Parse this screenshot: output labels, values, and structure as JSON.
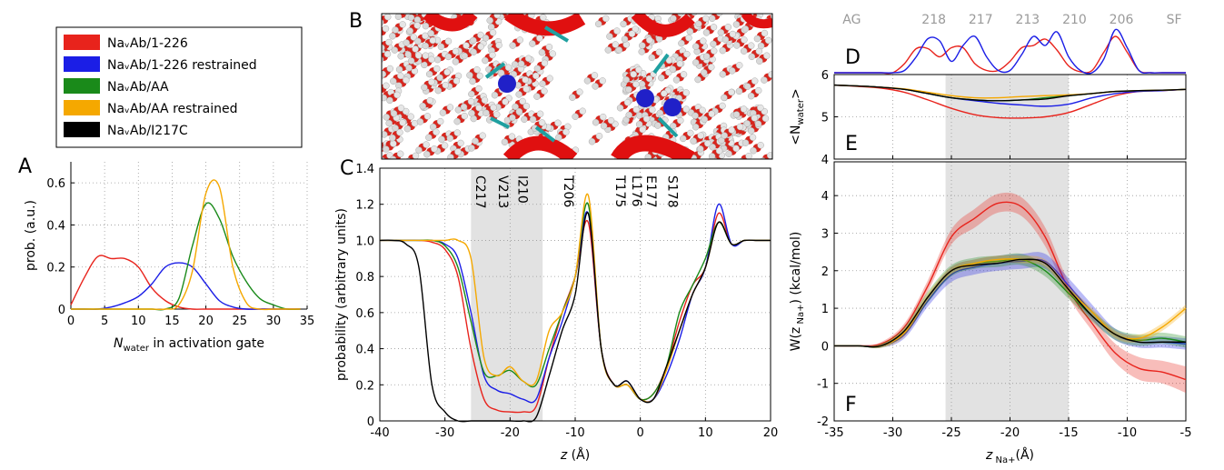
{
  "panel_labels": [
    "A",
    "B",
    "C",
    "D",
    "E",
    "F"
  ],
  "chart_data": [
    {
      "type": "line",
      "xlabel": [
        "N",
        "water",
        " in activation gate"
      ],
      "ylabel": "prob. (a.u.)",
      "x": [
        0,
        2,
        4,
        6,
        8,
        10,
        12,
        14,
        16,
        18,
        20,
        22,
        24,
        26,
        28,
        30,
        32,
        34
      ],
      "xlim": [
        0,
        35
      ],
      "xticks": [
        0,
        5,
        10,
        15,
        20,
        25,
        30,
        35
      ],
      "ylim": [
        0,
        0.7
      ],
      "yticks": [
        0,
        0.2,
        0.4,
        0.6
      ],
      "grid": true,
      "frame": false,
      "series": [
        {
          "color": "#e8231c",
          "values": [
            0.02,
            0.15,
            0.25,
            0.24,
            0.24,
            0.2,
            0.1,
            0.04,
            0.01,
            0,
            0,
            0,
            0,
            0,
            0,
            0,
            0,
            0
          ]
        },
        {
          "color": "#1b1ee6",
          "values": [
            0,
            0,
            0,
            0.01,
            0.03,
            0.06,
            0.12,
            0.2,
            0.22,
            0.2,
            0.12,
            0.04,
            0.01,
            0,
            0,
            0,
            0,
            0
          ]
        },
        {
          "color": "#1a8a1a",
          "values": [
            0,
            0,
            0,
            0,
            0,
            0,
            0,
            0,
            0.05,
            0.3,
            0.5,
            0.43,
            0.25,
            0.13,
            0.05,
            0.02,
            0,
            0
          ]
        },
        {
          "color": "#f5a800",
          "values": [
            0,
            0,
            0,
            0,
            0,
            0,
            0,
            0,
            0.02,
            0.18,
            0.55,
            0.58,
            0.2,
            0.03,
            0,
            0,
            0,
            0
          ]
        }
      ]
    },
    {
      "type": "line",
      "xlabel": [
        "z",
        " (Å)"
      ],
      "ylabel": "probability (arbitrary units)",
      "x": [
        -40,
        -38,
        -36,
        -34,
        -32,
        -30,
        -28,
        -26,
        -24,
        -22,
        -20,
        -18,
        -16,
        -14,
        -12,
        -10,
        -8,
        -6,
        -4,
        -2,
        0,
        2,
        4,
        6,
        8,
        10,
        12,
        14,
        16,
        18,
        20
      ],
      "xlim": [
        -40,
        20
      ],
      "xticks": [
        -40,
        -30,
        -20,
        -10,
        0,
        10,
        20
      ],
      "ylim": [
        0,
        1.4
      ],
      "yticks": [
        0,
        0.2,
        0.4,
        0.6,
        0.8,
        {
          "value": 1,
          "label": "1.0"
        },
        1.2,
        1.4
      ],
      "grid": true,
      "frame": true,
      "shaded_region": [
        -26,
        -15
      ],
      "annotations": [
        {
          "text": "C217",
          "x": -24.5
        },
        {
          "text": "V213",
          "x": -21
        },
        {
          "text": "I210",
          "x": -18
        },
        {
          "text": "T206",
          "x": -11
        },
        {
          "text": "T175",
          "x": -3
        },
        {
          "text": "L176",
          "x": -0.5
        },
        {
          "text": "E177",
          "x": 1.7
        },
        {
          "text": "S178",
          "x": 5
        }
      ],
      "series": [
        {
          "name": "NaᵥAb/1-226",
          "color": "#e8231c",
          "values": [
            1,
            1,
            1,
            1,
            0.99,
            0.95,
            0.8,
            0.4,
            0.12,
            0.06,
            0.05,
            0.05,
            0.08,
            0.35,
            0.6,
            0.8,
            1.1,
            0.4,
            0.2,
            0.2,
            0.12,
            0.15,
            0.3,
            0.55,
            0.75,
            0.85,
            1.15,
            0.98,
            1,
            1,
            1
          ]
        },
        {
          "name": "NaᵥAb/1-226 restrained",
          "color": "#1b1ee6",
          "values": [
            1,
            1,
            1,
            1,
            1,
            0.98,
            0.9,
            0.6,
            0.25,
            0.17,
            0.15,
            0.12,
            0.12,
            0.35,
            0.55,
            0.8,
            1.15,
            0.4,
            0.2,
            0.22,
            0.12,
            0.12,
            0.25,
            0.45,
            0.7,
            0.85,
            1.2,
            0.98,
            1,
            1,
            1
          ]
        },
        {
          "name": "NaᵥAb/AA",
          "color": "#1a8a1a",
          "values": [
            1,
            1,
            1,
            1,
            1,
            0.97,
            0.85,
            0.55,
            0.27,
            0.25,
            0.28,
            0.22,
            0.2,
            0.4,
            0.6,
            0.8,
            1.2,
            0.4,
            0.2,
            0.2,
            0.12,
            0.15,
            0.3,
            0.6,
            0.75,
            0.9,
            1.1,
            0.98,
            1,
            1,
            1
          ]
        },
        {
          "name": "NaᵥAb/AA restrained",
          "color": "#f5a800",
          "values": [
            1,
            1,
            1,
            1,
            1,
            1,
            1,
            0.9,
            0.35,
            0.25,
            0.3,
            0.22,
            0.22,
            0.5,
            0.6,
            0.8,
            1.25,
            0.4,
            0.2,
            0.2,
            0.12,
            0.12,
            0.28,
            0.5,
            0.7,
            0.85,
            1.1,
            0.98,
            1,
            1,
            1
          ]
        },
        {
          "name": "NaᵥAb/I217C",
          "color": "#000000",
          "values": [
            1,
            1,
            0.98,
            0.85,
            0.2,
            0.05,
            0,
            0,
            0,
            0,
            0,
            0,
            0.02,
            0.25,
            0.5,
            0.7,
            1.15,
            0.4,
            0.2,
            0.22,
            0.12,
            0.12,
            0.3,
            0.5,
            0.7,
            0.85,
            1.1,
            0.98,
            1,
            1,
            1
          ]
        }
      ]
    },
    {
      "type": "line",
      "axes": false,
      "x": [
        -35,
        -34,
        -33,
        -32,
        -31,
        -30,
        -29,
        -28,
        -27,
        -26,
        -25,
        -24,
        -23,
        -22,
        -21,
        -20,
        -19,
        -18,
        -17,
        -16,
        -15,
        -14,
        -13,
        -12,
        -11,
        -10,
        -9,
        -8,
        -7,
        -6,
        -5
      ],
      "xlim": [
        -35,
        -5
      ],
      "ylim": [
        0,
        1
      ],
      "site_labels": [
        {
          "text": "AG",
          "x": -33.5
        },
        {
          "text": "218",
          "x": -26.5
        },
        {
          "text": "217",
          "x": -22.5
        },
        {
          "text": "213",
          "x": -18.5
        },
        {
          "text": "210",
          "x": -14.5
        },
        {
          "text": "206",
          "x": -10.5
        },
        {
          "text": "SF",
          "x": -6
        }
      ],
      "series": [
        {
          "color": "#e8231c",
          "values": [
            0,
            0,
            0,
            0,
            0,
            0,
            0.2,
            0.53,
            0.53,
            0.35,
            0.55,
            0.55,
            0.2,
            0.05,
            0.05,
            0.25,
            0.55,
            0.6,
            0.74,
            0.5,
            0.15,
            0.02,
            0.05,
            0.45,
            0.8,
            0.45,
            0.05,
            0,
            0,
            0,
            0
          ]
        },
        {
          "color": "#1b1ee6",
          "values": [
            0,
            0,
            0,
            0,
            0,
            0,
            0.05,
            0.35,
            0.75,
            0.7,
            0.25,
            0.6,
            0.8,
            0.35,
            0.05,
            0.05,
            0.4,
            0.8,
            0.6,
            0.9,
            0.35,
            0.05,
            0,
            0.3,
            0.95,
            0.55,
            0.05,
            0,
            0,
            0,
            0
          ]
        }
      ]
    },
    {
      "type": "line",
      "ylabel": [
        "<N",
        "water",
        ">"
      ],
      "x": [
        -35,
        -33,
        -31,
        -29,
        -27,
        -25,
        -23,
        -21,
        -19,
        -17,
        -15,
        -13,
        -11,
        -9,
        -7,
        -5
      ],
      "xlim": [
        -35,
        -5
      ],
      "xticks": [
        -35,
        -30,
        -25,
        -20,
        -15,
        -10,
        -5
      ],
      "xtick_labels": false,
      "ylim": [
        4,
        6
      ],
      "yticks": [
        4,
        5,
        6
      ],
      "grid": true,
      "frame": true,
      "shaded_region": [
        -25.5,
        -15
      ],
      "series": [
        {
          "color": "#e8231c",
          "values": [
            5.75,
            5.72,
            5.68,
            5.58,
            5.4,
            5.2,
            5.05,
            4.98,
            4.97,
            5.0,
            5.1,
            5.3,
            5.5,
            5.6,
            5.62,
            5.65
          ]
        },
        {
          "color": "#1b1ee6",
          "values": [
            5.75,
            5.73,
            5.7,
            5.65,
            5.55,
            5.45,
            5.38,
            5.32,
            5.28,
            5.25,
            5.3,
            5.45,
            5.55,
            5.6,
            5.62,
            5.65
          ]
        },
        {
          "color": "#1a8a1a",
          "values": [
            5.75,
            5.73,
            5.7,
            5.65,
            5.55,
            5.45,
            5.4,
            5.38,
            5.4,
            5.45,
            5.5,
            5.55,
            5.6,
            5.62,
            5.63,
            5.65
          ]
        },
        {
          "color": "#f5a800",
          "values": [
            5.75,
            5.73,
            5.7,
            5.66,
            5.58,
            5.5,
            5.45,
            5.45,
            5.48,
            5.5,
            5.52,
            5.55,
            5.6,
            5.62,
            5.63,
            5.65
          ]
        },
        {
          "color": "#000000",
          "values": [
            5.75,
            5.73,
            5.7,
            5.65,
            5.55,
            5.45,
            5.4,
            5.38,
            5.4,
            5.42,
            5.5,
            5.55,
            5.6,
            5.62,
            5.63,
            5.65
          ]
        }
      ]
    },
    {
      "type": "line",
      "xlabel": [
        "z",
        " Na+",
        "(Å)"
      ],
      "ylabel": [
        "W(z",
        " Na+",
        ") (kcal/mol)"
      ],
      "x": [
        -35,
        -33,
        -31,
        -29,
        -27,
        -25,
        -23,
        -21,
        -19,
        -17,
        -15,
        -13,
        -11,
        -9,
        -7,
        -5
      ],
      "xlim": [
        -35,
        -5
      ],
      "xticks": [
        -35,
        -30,
        -25,
        -20,
        -15,
        -10,
        -5
      ],
      "ylim": [
        -2,
        4.9
      ],
      "yticks": [
        -2,
        -1,
        0,
        1,
        2,
        3,
        4
      ],
      "grid": true,
      "frame": true,
      "shaded_region": [
        -25.5,
        -15
      ],
      "series": [
        {
          "color": "#e8231c",
          "values": [
            0,
            0,
            0.05,
            0.5,
            1.6,
            2.9,
            3.4,
            3.8,
            3.7,
            2.9,
            1.5,
            0.6,
            -0.2,
            -0.6,
            -0.7,
            -0.9
          ],
          "errors": [
            0,
            0,
            0.05,
            0.1,
            0.15,
            0.2,
            0.25,
            0.25,
            0.25,
            0.25,
            0.2,
            0.2,
            0.25,
            0.3,
            0.3,
            0.35
          ]
        },
        {
          "color": "#1b1ee6",
          "values": [
            0,
            0,
            0,
            0.3,
            1.2,
            1.9,
            2.1,
            2.2,
            2.25,
            2.25,
            1.6,
            0.9,
            0.3,
            0.1,
            0.1,
            0.05
          ],
          "errors": [
            0,
            0,
            0.05,
            0.1,
            0.15,
            0.2,
            0.2,
            0.2,
            0.2,
            0.2,
            0.2,
            0.2,
            0.15,
            0.15,
            0.15,
            0.15
          ]
        },
        {
          "color": "#1a8a1a",
          "values": [
            0,
            0,
            0,
            0.4,
            1.3,
            2.0,
            2.2,
            2.25,
            2.3,
            2.0,
            1.4,
            0.8,
            0.3,
            0.15,
            0.2,
            0.1
          ],
          "errors": [
            0,
            0,
            0.05,
            0.1,
            0.15,
            0.15,
            0.15,
            0.15,
            0.15,
            0.15,
            0.15,
            0.15,
            0.15,
            0.15,
            0.15,
            0.15
          ]
        },
        {
          "color": "#f5a800",
          "values": [
            0,
            0,
            0,
            0.35,
            1.3,
            2.0,
            2.2,
            2.3,
            2.3,
            2.2,
            1.5,
            0.9,
            0.3,
            0.2,
            0.5,
            1.0
          ],
          "errors": [
            0,
            0,
            0.05,
            0.1,
            0.1,
            0.1,
            0.1,
            0.1,
            0.1,
            0.1,
            0.1,
            0.1,
            0.1,
            0.1,
            0.1,
            0.1
          ]
        },
        {
          "color": "#000000",
          "values": [
            0,
            0,
            0,
            0.4,
            1.3,
            2.0,
            2.15,
            2.2,
            2.3,
            2.2,
            1.5,
            0.8,
            0.3,
            0.1,
            0.1,
            0.1
          ]
        }
      ]
    }
  ]
}
